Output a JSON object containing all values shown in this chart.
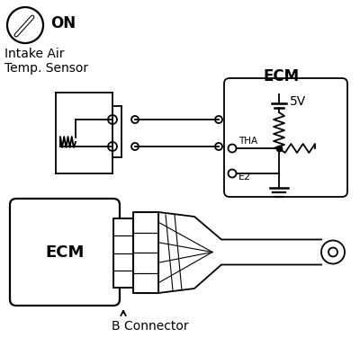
{
  "bg_color": "#ffffff",
  "fg_color": "#000000",
  "on_label": "ON",
  "sensor_label1": "Intake Air",
  "sensor_label2": "Temp. Sensor",
  "ecm_label": "ECM",
  "ecm_label2": "ECM",
  "voltage_label": "5V",
  "tha_label": "THA",
  "e2_label": "E2",
  "connector_label": "B Connector",
  "figw": 4.0,
  "figh": 4.05,
  "dpi": 100
}
